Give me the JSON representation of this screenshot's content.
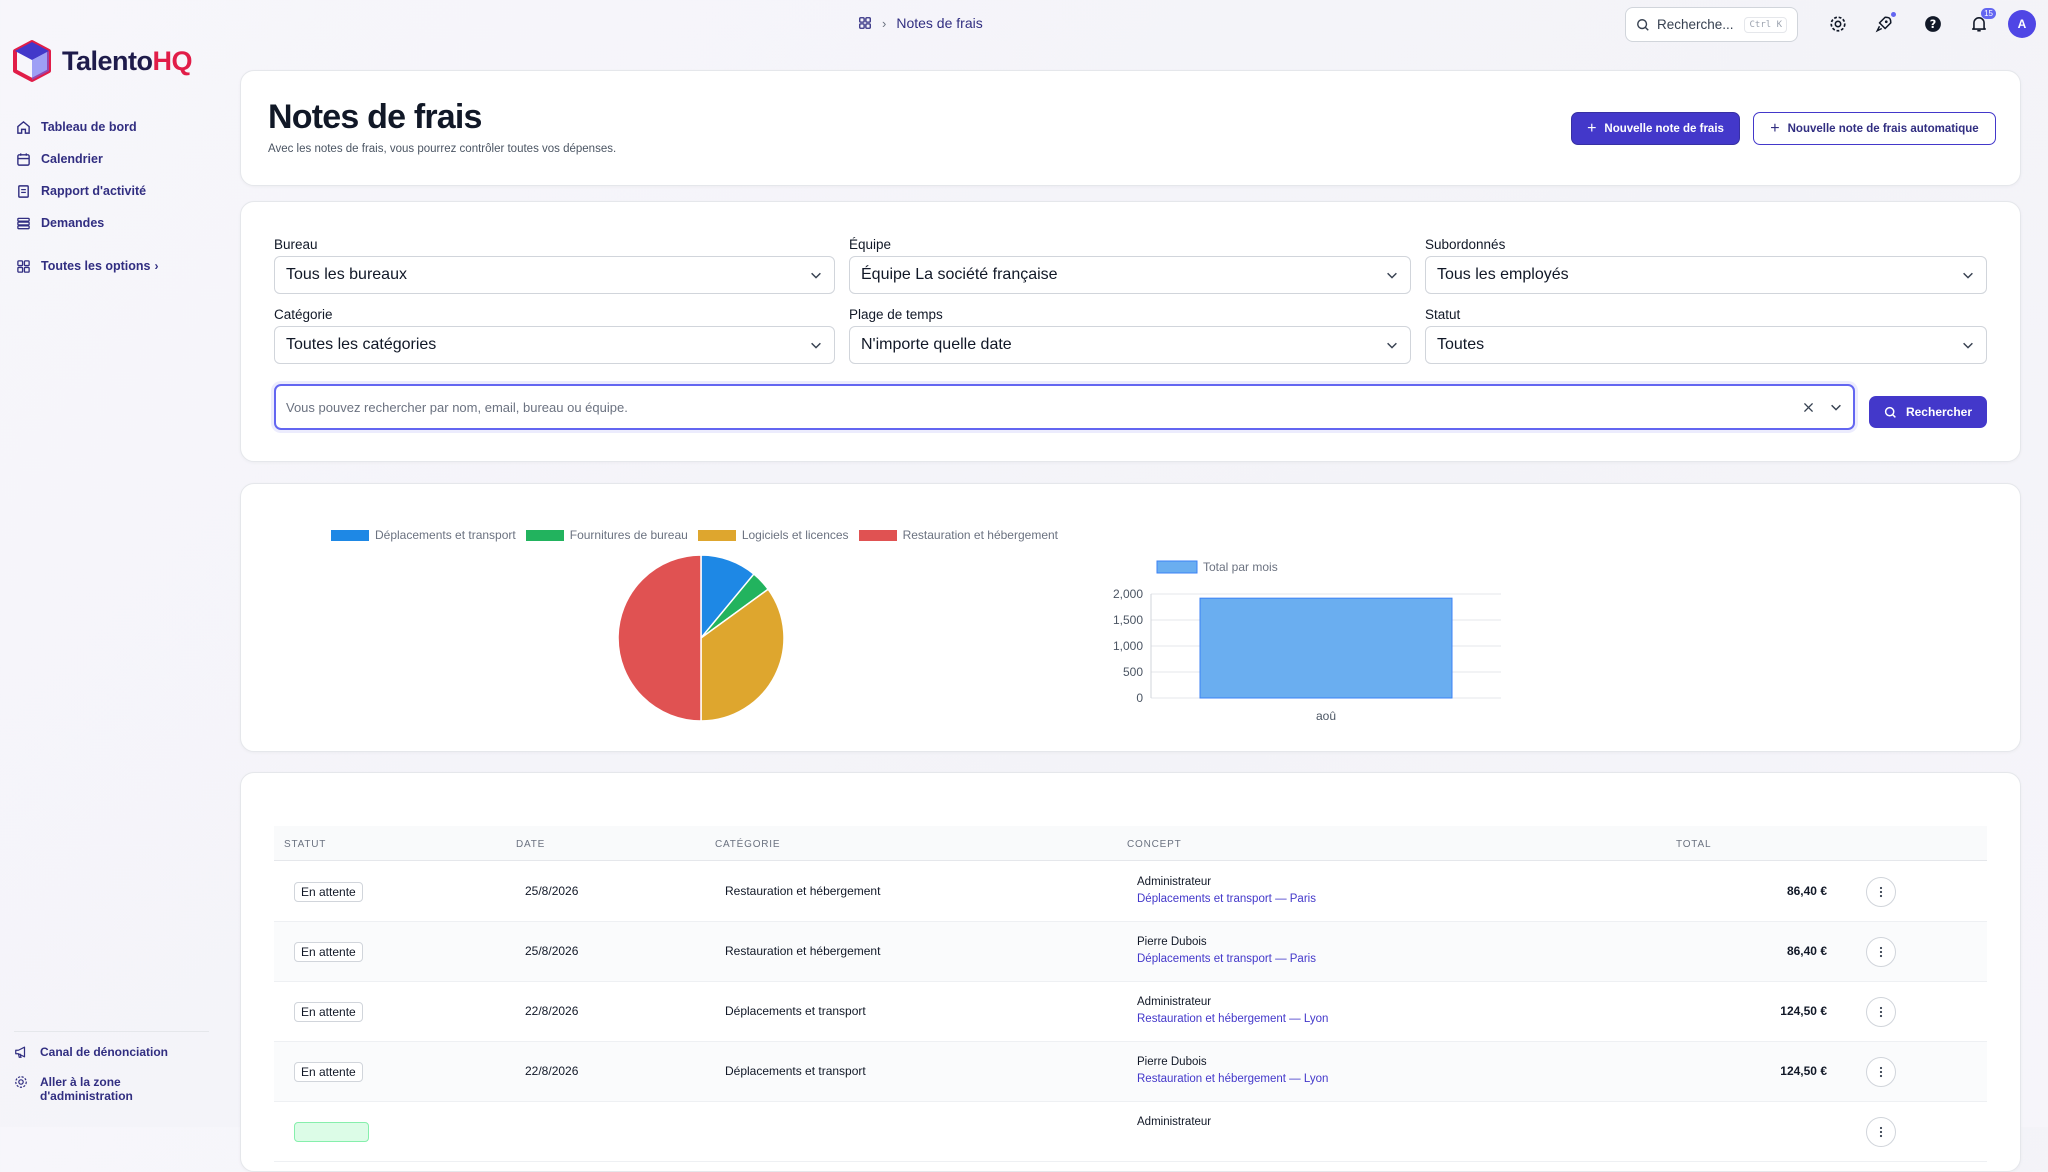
{
  "app": {
    "name_prefix": "Talento",
    "name_suffix": "HQ",
    "brand_color": "#e11d48",
    "primary_color": "#4338ca"
  },
  "sidebar": {
    "items": [
      {
        "label": "Tableau de bord",
        "icon": "home-icon"
      },
      {
        "label": "Calendrier",
        "icon": "calendar-icon"
      },
      {
        "label": "Rapport d'activité",
        "icon": "report-icon"
      },
      {
        "label": "Demandes",
        "icon": "list-icon"
      }
    ],
    "all_options": "Toutes les options",
    "bottom": [
      {
        "label": "Canal de dénonciation",
        "icon": "megaphone-icon"
      },
      {
        "label": "Aller à la zone d'administration",
        "icon": "gear-icon"
      }
    ]
  },
  "topbar": {
    "breadcrumb": "Notes de frais",
    "search_placeholder": "Recherche...",
    "search_shortcut": "Ctrl K",
    "notification_count": "15",
    "avatar_initial": "A"
  },
  "header": {
    "title": "Notes de frais",
    "subtitle": "Avec les notes de frais, vous pourrez contrôler toutes vos dépenses.",
    "new_button": "Nouvelle note de frais",
    "new_auto_button": "Nouvelle note de frais automatique"
  },
  "filters": {
    "bureau": {
      "label": "Bureau",
      "value": "Tous les bureaux"
    },
    "equipe": {
      "label": "Équipe",
      "value": "Équipe La société française"
    },
    "subordonnes": {
      "label": "Subordonnés",
      "value": "Tous les employés"
    },
    "categorie": {
      "label": "Catégorie",
      "value": "Toutes les catégories"
    },
    "plage": {
      "label": "Plage de temps",
      "value": "N'importe quelle date"
    },
    "statut": {
      "label": "Statut",
      "value": "Toutes"
    },
    "search_placeholder": "Vous pouvez rechercher par nom, email, bureau ou équipe.",
    "search_button": "Rechercher"
  },
  "chart_data": [
    {
      "type": "pie",
      "categories": [
        "Déplacements et transport",
        "Fournitures de bureau",
        "Logiciels et licences",
        "Restauration et hébergement"
      ],
      "values": [
        11,
        4,
        35,
        50
      ],
      "colors": [
        "#1e88e5",
        "#22b35e",
        "#dea62e",
        "#e05252"
      ],
      "legend": "top"
    },
    {
      "type": "bar",
      "categories": [
        "aoû"
      ],
      "series": [
        {
          "name": "Total par mois",
          "values": [
            1920
          ]
        }
      ],
      "ylim": [
        0,
        2000
      ],
      "yticks": [
        "0",
        "500",
        "1,000",
        "1,500",
        "2,000"
      ],
      "color": "#6aaef0",
      "grid": true
    }
  ],
  "table": {
    "headers": [
      "STATUT",
      "DATE",
      "CATÉGORIE",
      "CONCEPT",
      "TOTAL"
    ],
    "rows": [
      {
        "status": "En attente",
        "date": "25/8/2026",
        "category": "Restauration et hébergement",
        "person": "Administrateur",
        "concept": "Déplacements et transport — Paris",
        "total": "86,40 €"
      },
      {
        "status": "En attente",
        "date": "25/8/2026",
        "category": "Restauration et hébergement",
        "person": "Pierre Dubois",
        "concept": "Déplacements et transport — Paris",
        "total": "86,40 €"
      },
      {
        "status": "En attente",
        "date": "22/8/2026",
        "category": "Déplacements et transport",
        "person": "Administrateur",
        "concept": "Restauration et hébergement — Lyon",
        "total": "124,50 €"
      },
      {
        "status": "En attente",
        "date": "22/8/2026",
        "category": "Déplacements et transport",
        "person": "Pierre Dubois",
        "concept": "Restauration et hébergement — Lyon",
        "total": "124,50 €"
      },
      {
        "status": "",
        "date": "",
        "category": "",
        "person": "Administrateur",
        "concept": "",
        "total": ""
      }
    ]
  }
}
